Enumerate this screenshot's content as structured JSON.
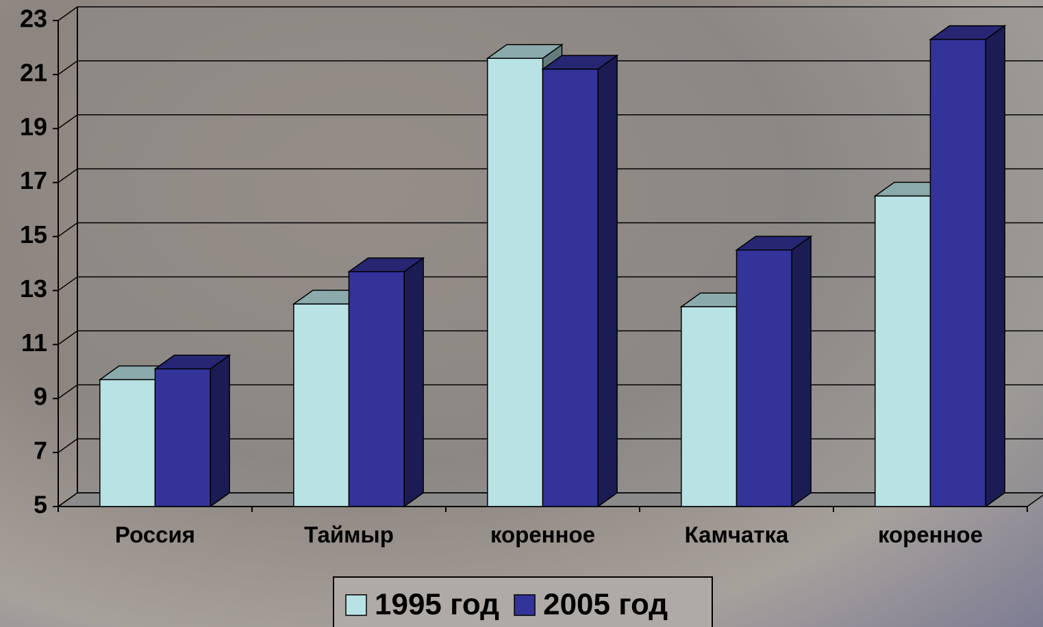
{
  "chart_data": {
    "type": "bar3d",
    "categories": [
      "Россия",
      "Таймыр",
      "коренное",
      "Камчатка",
      "коренное"
    ],
    "series": [
      {
        "name": "1995 год",
        "color": "#b8e2e4",
        "values": [
          9.7,
          12.5,
          21.6,
          12.4,
          16.5
        ]
      },
      {
        "name": "2005 год",
        "color": "#333399",
        "values": [
          10.1,
          13.7,
          21.2,
          14.5,
          22.3
        ]
      }
    ],
    "ylim": [
      5,
      23
    ],
    "yticks": [
      5,
      7,
      9,
      11,
      13,
      15,
      17,
      19,
      21,
      23
    ],
    "grid": true,
    "legend": "bottom"
  }
}
